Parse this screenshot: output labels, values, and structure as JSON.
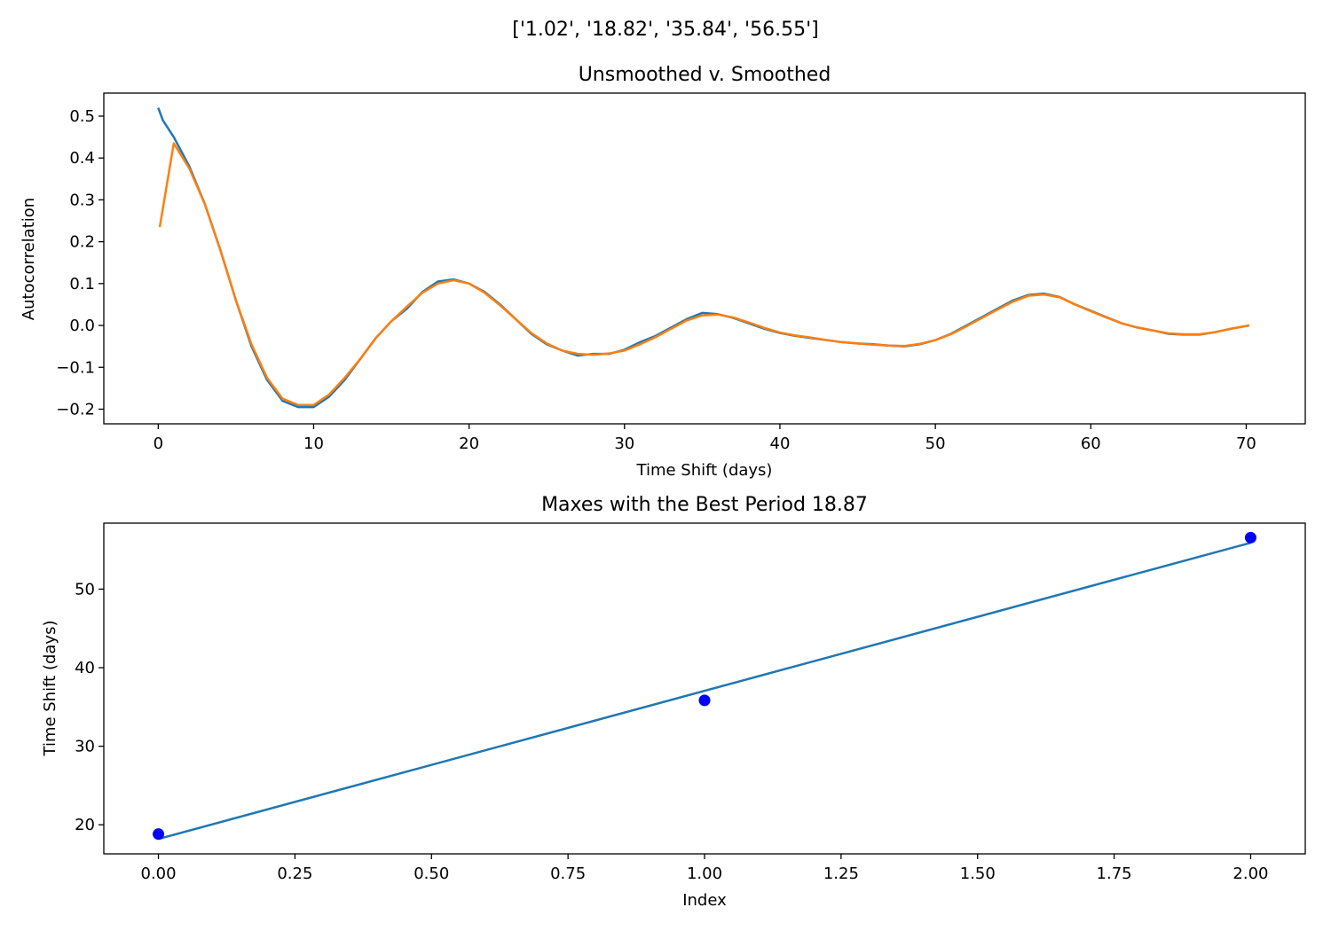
{
  "suptitle": "['1.02', '18.82', '35.84', '56.55']",
  "colors": {
    "unsmoothed": "#1f77b4",
    "smoothed": "#ff7f0e",
    "fit_line": "#1f77b4",
    "maxes_points": "#0000ff",
    "axes": "#000000"
  },
  "chart_data": [
    {
      "type": "line",
      "title": "Unsmoothed v. Smoothed",
      "xlabel": "Time Shift (days)",
      "ylabel": "Autocorrelation",
      "xlim": [
        -3.5,
        73.8
      ],
      "ylim": [
        -0.235,
        0.555
      ],
      "xticks": [
        0,
        10,
        20,
        30,
        40,
        50,
        60,
        70
      ],
      "xtick_labels": [
        "0",
        "10",
        "20",
        "30",
        "40",
        "50",
        "60",
        "70"
      ],
      "yticks": [
        -0.2,
        -0.1,
        0.0,
        0.1,
        0.2,
        0.3,
        0.4,
        0.5
      ],
      "ytick_labels": [
        "−0.2",
        "−0.1",
        "0.0",
        "0.1",
        "0.2",
        "0.3",
        "0.4",
        "0.5"
      ],
      "grid": false,
      "series": [
        {
          "x": [
            0.0,
            0.3,
            1.0,
            2.0,
            3.0,
            4.0,
            5.0,
            6.0,
            7.0,
            8.0,
            9.0,
            10.0,
            11.0,
            12.0,
            13.0,
            14.0,
            15.0,
            16.0,
            17.0,
            18.0,
            19.0,
            20.0,
            21.0,
            22.0,
            23.0,
            24.0,
            25.0,
            26.0,
            27.0,
            28.0,
            29.0,
            30.0,
            31.0,
            32.0,
            33.0,
            34.0,
            35.0,
            36.0,
            37.0,
            38.0,
            39.0,
            40.0,
            41.0,
            42.0,
            43.0,
            44.0,
            45.0,
            46.0,
            47.0,
            48.0,
            49.0,
            50.0,
            51.0,
            52.0,
            53.0,
            54.0,
            55.0,
            56.0,
            57.0,
            58.0,
            59.0,
            60.0,
            61.0,
            62.0,
            63.0,
            64.0,
            65.0,
            66.0,
            67.0,
            68.0,
            69.0,
            70.2
          ],
          "values": [
            0.52,
            0.49,
            0.45,
            0.38,
            0.29,
            0.18,
            0.06,
            -0.05,
            -0.13,
            -0.18,
            -0.195,
            -0.195,
            -0.17,
            -0.13,
            -0.08,
            -0.03,
            0.01,
            0.04,
            0.08,
            0.105,
            0.11,
            0.1,
            0.08,
            0.05,
            0.015,
            -0.02,
            -0.045,
            -0.06,
            -0.072,
            -0.068,
            -0.068,
            -0.058,
            -0.04,
            -0.025,
            -0.005,
            0.015,
            0.03,
            0.027,
            0.018,
            0.005,
            -0.008,
            -0.018,
            -0.025,
            -0.03,
            -0.035,
            -0.04,
            -0.043,
            -0.045,
            -0.048,
            -0.05,
            -0.045,
            -0.035,
            -0.02,
            0.0,
            0.02,
            0.04,
            0.06,
            0.073,
            0.076,
            0.068,
            0.05,
            0.035,
            0.02,
            0.005,
            -0.005,
            -0.012,
            -0.02,
            -0.022,
            -0.022,
            -0.016,
            -0.008,
            0.0
          ]
        },
        {
          "x": [
            0.1,
            1.0,
            2.0,
            3.0,
            4.0,
            5.0,
            6.0,
            7.0,
            8.0,
            9.0,
            10.0,
            11.0,
            12.0,
            13.0,
            14.0,
            15.0,
            16.0,
            17.0,
            18.0,
            19.0,
            20.0,
            21.0,
            22.0,
            23.0,
            24.0,
            25.0,
            26.0,
            27.0,
            28.0,
            29.0,
            30.0,
            31.0,
            32.0,
            33.0,
            34.0,
            35.0,
            36.0,
            37.0,
            38.0,
            39.0,
            40.0,
            41.0,
            42.0,
            43.0,
            44.0,
            45.0,
            46.0,
            47.0,
            48.0,
            49.0,
            50.0,
            51.0,
            52.0,
            53.0,
            54.0,
            55.0,
            56.0,
            57.0,
            58.0,
            59.0,
            60.0,
            61.0,
            62.0,
            63.0,
            64.0,
            65.0,
            66.0,
            67.0,
            68.0,
            69.0,
            70.2
          ],
          "values": [
            0.235,
            0.435,
            0.375,
            0.29,
            0.18,
            0.06,
            -0.045,
            -0.125,
            -0.175,
            -0.19,
            -0.19,
            -0.165,
            -0.125,
            -0.08,
            -0.03,
            0.01,
            0.045,
            0.078,
            0.1,
            0.108,
            0.1,
            0.078,
            0.048,
            0.015,
            -0.018,
            -0.043,
            -0.06,
            -0.068,
            -0.07,
            -0.067,
            -0.06,
            -0.045,
            -0.028,
            -0.008,
            0.012,
            0.024,
            0.026,
            0.019,
            0.007,
            -0.006,
            -0.017,
            -0.024,
            -0.029,
            -0.035,
            -0.04,
            -0.043,
            -0.046,
            -0.048,
            -0.049,
            -0.044,
            -0.035,
            -0.021,
            -0.002,
            0.018,
            0.038,
            0.057,
            0.071,
            0.074,
            0.067,
            0.05,
            0.034,
            0.019,
            0.005,
            -0.005,
            -0.012,
            -0.019,
            -0.021,
            -0.021,
            -0.016,
            -0.008,
            0.0
          ]
        }
      ]
    },
    {
      "type": "scatter",
      "title": "Maxes with the Best Period 18.87",
      "xlabel": "Index",
      "ylabel": "Time Shift (days)",
      "xlim": [
        -0.1,
        2.1
      ],
      "ylim": [
        16.3,
        58.4
      ],
      "xticks": [
        0.0,
        0.25,
        0.5,
        0.75,
        1.0,
        1.25,
        1.5,
        1.75,
        2.0
      ],
      "xtick_labels": [
        "0.00",
        "0.25",
        "0.50",
        "0.75",
        "1.00",
        "1.25",
        "1.50",
        "1.75",
        "2.00"
      ],
      "yticks": [
        20,
        30,
        40,
        50
      ],
      "ytick_labels": [
        "20",
        "30",
        "40",
        "50"
      ],
      "grid": false,
      "points": {
        "x": [
          0,
          1,
          2
        ],
        "y": [
          18.82,
          35.84,
          56.55
        ]
      },
      "fit_line": {
        "x": [
          0,
          2
        ],
        "y": [
          18.2,
          55.9
        ]
      }
    }
  ]
}
